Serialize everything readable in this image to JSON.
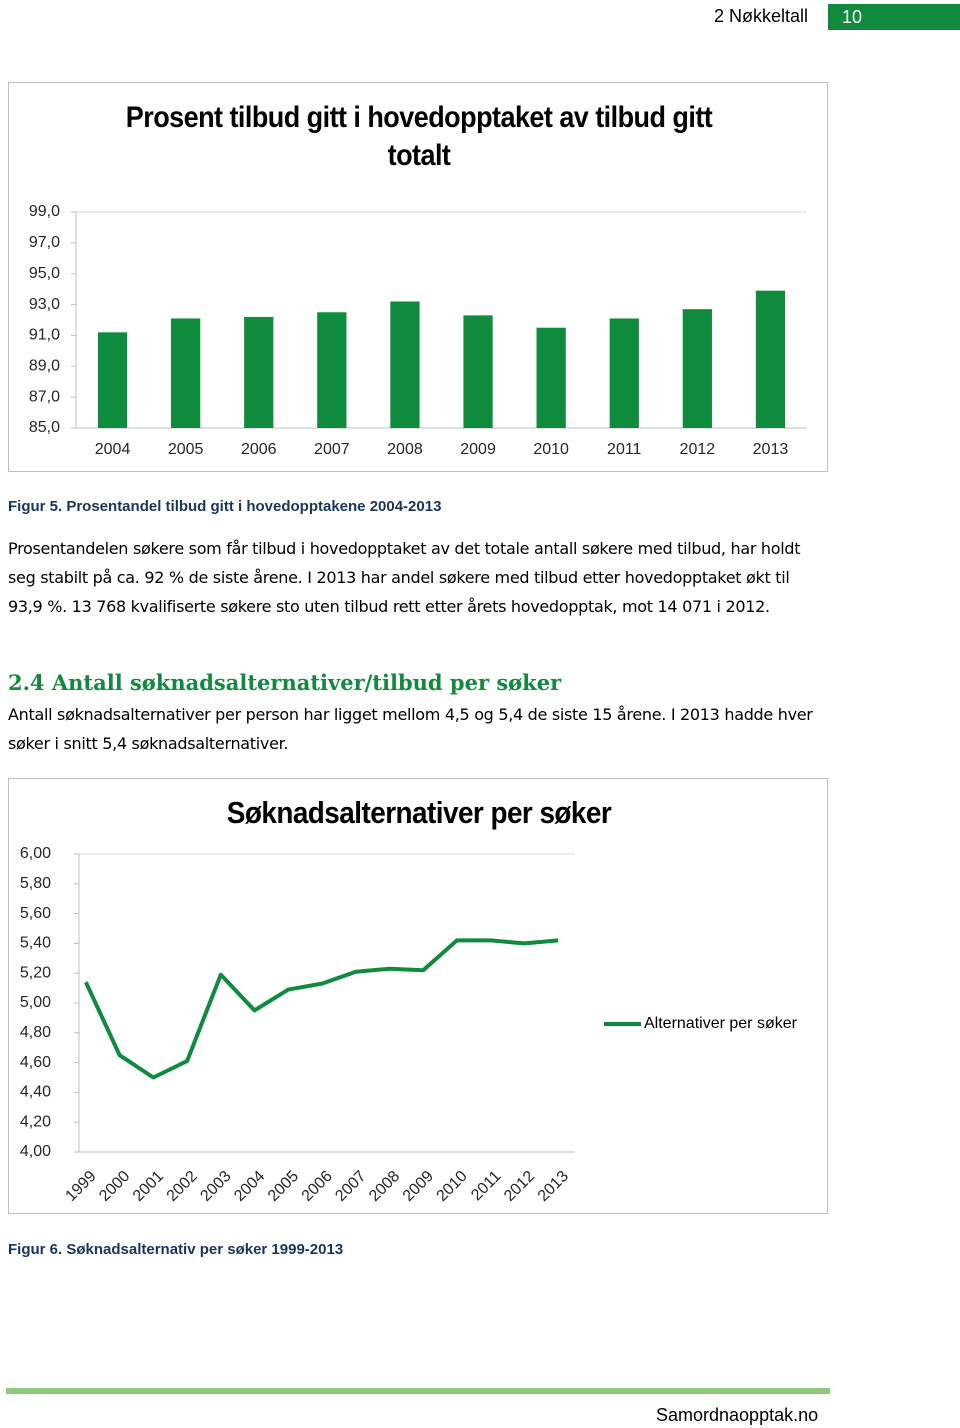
{
  "header": {
    "section": "2 Nøkkeltall",
    "page": "10"
  },
  "chart_data": [
    {
      "type": "bar",
      "title": "Prosent tilbud gitt i hovedopptaket av tilbud gitt totalt",
      "categories": [
        "2004",
        "2005",
        "2006",
        "2007",
        "2008",
        "2009",
        "2010",
        "2011",
        "2012",
        "2013"
      ],
      "values": [
        91.2,
        92.1,
        92.2,
        92.5,
        93.2,
        92.3,
        91.5,
        92.1,
        92.7,
        93.9
      ],
      "color": "#0e8b3c",
      "ylim": [
        85,
        99
      ],
      "yticks": [
        {
          "value": 85,
          "label": "85,0"
        },
        {
          "value": 87,
          "label": "87,0"
        },
        {
          "value": 89,
          "label": "89,0"
        },
        {
          "value": 91,
          "label": "91,0"
        },
        {
          "value": 93,
          "label": "93,0"
        },
        {
          "value": 95,
          "label": "95,0"
        },
        {
          "value": 97,
          "label": "97,0"
        },
        {
          "value": 99,
          "label": "99,0"
        }
      ],
      "grid": false
    },
    {
      "type": "line",
      "title": "Søknadsalternativer per søker",
      "categories": [
        "1999",
        "2000",
        "2001",
        "2002",
        "2003",
        "2004",
        "2005",
        "2006",
        "2007",
        "2008",
        "2009",
        "2010",
        "2011",
        "2012",
        "2013"
      ],
      "series": [
        {
          "name": "Alternativer per søker",
          "color": "#0e8b3c",
          "values": [
            5.14,
            4.65,
            4.5,
            4.61,
            5.19,
            4.95,
            5.09,
            5.13,
            5.21,
            5.23,
            5.22,
            5.42,
            5.42,
            5.4,
            5.42
          ]
        }
      ],
      "ylim": [
        4,
        6
      ],
      "yticks": [
        {
          "value": 4,
          "label": "4,00"
        },
        {
          "value": 4.2,
          "label": "4,20"
        },
        {
          "value": 4.4,
          "label": "4,40"
        },
        {
          "value": 4.6,
          "label": "4,60"
        },
        {
          "value": 4.8,
          "label": "4,80"
        },
        {
          "value": 5,
          "label": "5,00"
        },
        {
          "value": 5.2,
          "label": "5,20"
        },
        {
          "value": 5.4,
          "label": "5,40"
        },
        {
          "value": 5.6,
          "label": "5,60"
        },
        {
          "value": 5.8,
          "label": "5,80"
        },
        {
          "value": 6,
          "label": "6,00"
        }
      ],
      "grid": false,
      "legend": "right"
    }
  ],
  "figure1_caption": "Figur 5. Prosentandel tilbud gitt i hovedopptakene 2004-2013",
  "paragraph1": "Prosentandelen søkere som får tilbud i hovedopptaket av det totale antall søkere med tilbud, har holdt seg stabilt på ca. 92 % de siste årene. I 2013 har andel søkere med tilbud etter hovedopptaket økt til 93,9 %. 13 768 kvalifiserte søkere sto uten tilbud rett etter årets hovedopptak, mot 14 071 i 2012.",
  "section_heading": "2.4 Antall søknadsalternativer/tilbud per søker",
  "paragraph2": "Antall søknadsalternativer per person har ligget mellom 4,5 og 5,4 de siste 15 årene. I 2013 hadde hver søker i snitt 5,4 søknadsalternativer.",
  "figure2_caption": "Figur 6. Søknadsalternativ per søker 1999-2013",
  "footer": "Samordnaopptak.no"
}
